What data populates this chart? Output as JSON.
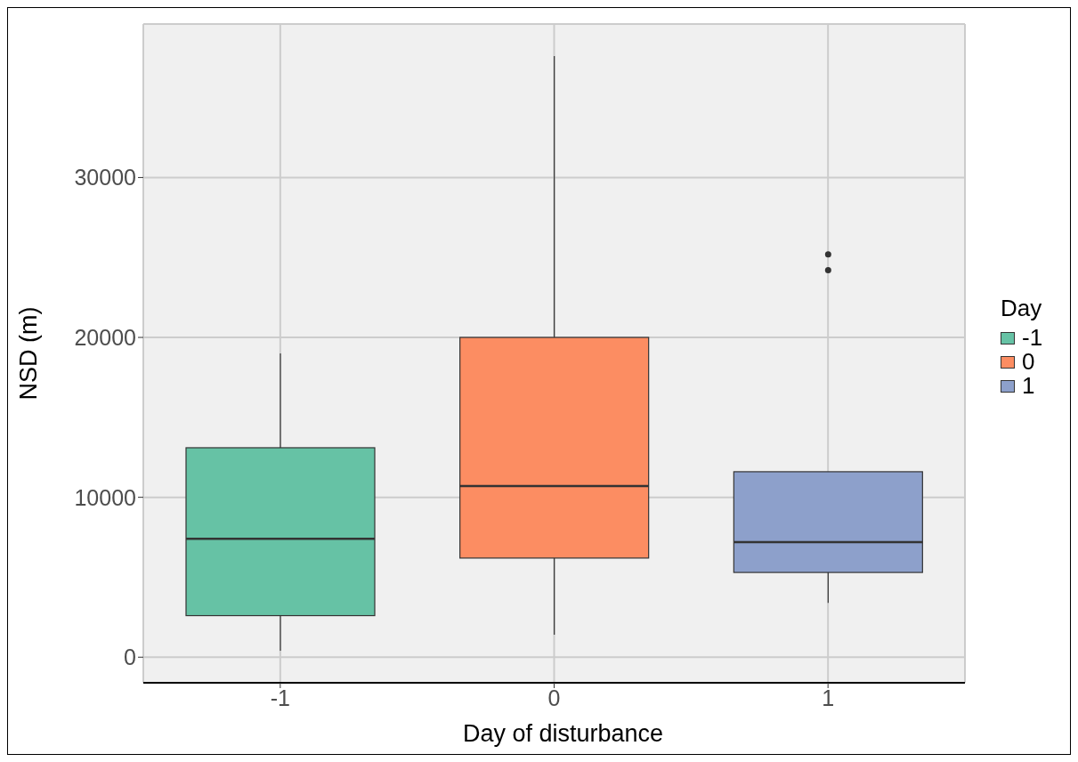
{
  "chart_data": {
    "type": "box",
    "xlabel": "Day of disturbance",
    "ylabel": "NSD (m)",
    "legend_title": "Day",
    "legend": "right",
    "grid": true,
    "categories": [
      "-1",
      "0",
      "1"
    ],
    "series": [
      {
        "name": "-1",
        "color": "#66c2a5",
        "boxes": [
          {
            "low": 400,
            "q1": 2600,
            "median": 7400,
            "q3": 13100,
            "high": 19000
          },
          null,
          null
        ]
      },
      {
        "name": "0",
        "color": "#fc8d62",
        "boxes": [
          null,
          {
            "low": 1400,
            "q1": 6200,
            "median": 10700,
            "q3": 20000,
            "high": 37600
          },
          null
        ]
      },
      {
        "name": "1",
        "color": "#8da0cb",
        "boxes": [
          null,
          null,
          {
            "low": 3400,
            "q1": 5300,
            "median": 7200,
            "q3": 11600,
            "high": 11600,
            "outliers": [
              24200,
              25200
            ]
          }
        ]
      }
    ],
    "ylim": [
      -1600,
      39600
    ],
    "yticks": [
      0,
      10000,
      20000,
      30000
    ]
  }
}
